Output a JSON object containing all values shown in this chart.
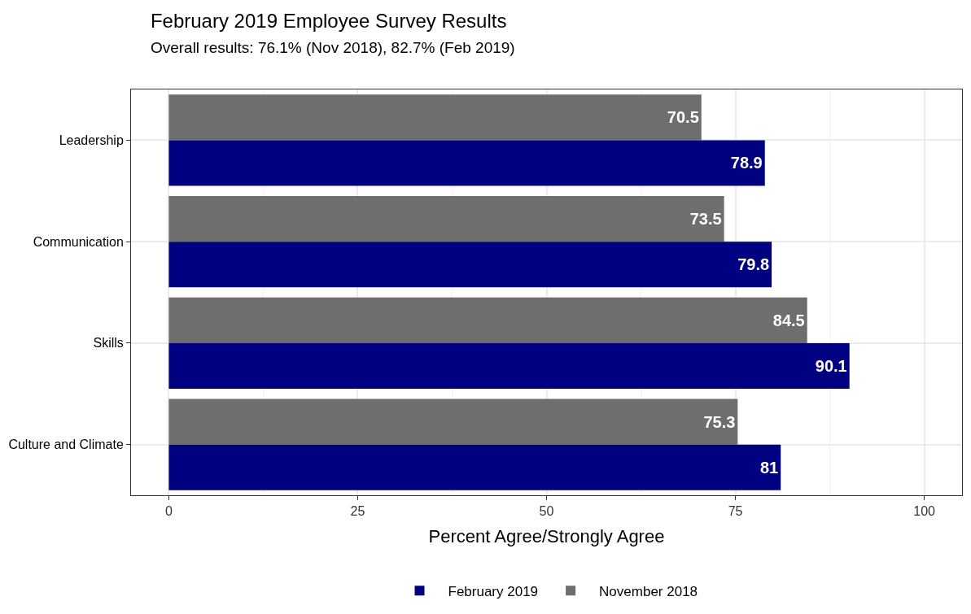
{
  "chart_data": {
    "type": "bar",
    "orientation": "horizontal",
    "title": "February 2019 Employee Survey Results",
    "subtitle": "Overall results: 76.1% (Nov 2018), 82.7% (Feb 2019)",
    "xlabel": "Percent Agree/Strongly Agree",
    "categories": [
      "Leadership",
      "Communication",
      "Skills",
      "Culture and Climate"
    ],
    "series": [
      {
        "name": "February 2019",
        "color": "#000080",
        "values": [
          78.9,
          79.8,
          90.1,
          81
        ]
      },
      {
        "name": "November 2018",
        "color": "#6e6e6e",
        "values": [
          70.5,
          73.5,
          84.5,
          75.3
        ]
      }
    ],
    "xlim": [
      -5,
      105
    ],
    "xticks": [
      0,
      25,
      50,
      75,
      100
    ],
    "grid": true,
    "legend": "bottom",
    "data_labels": true
  }
}
